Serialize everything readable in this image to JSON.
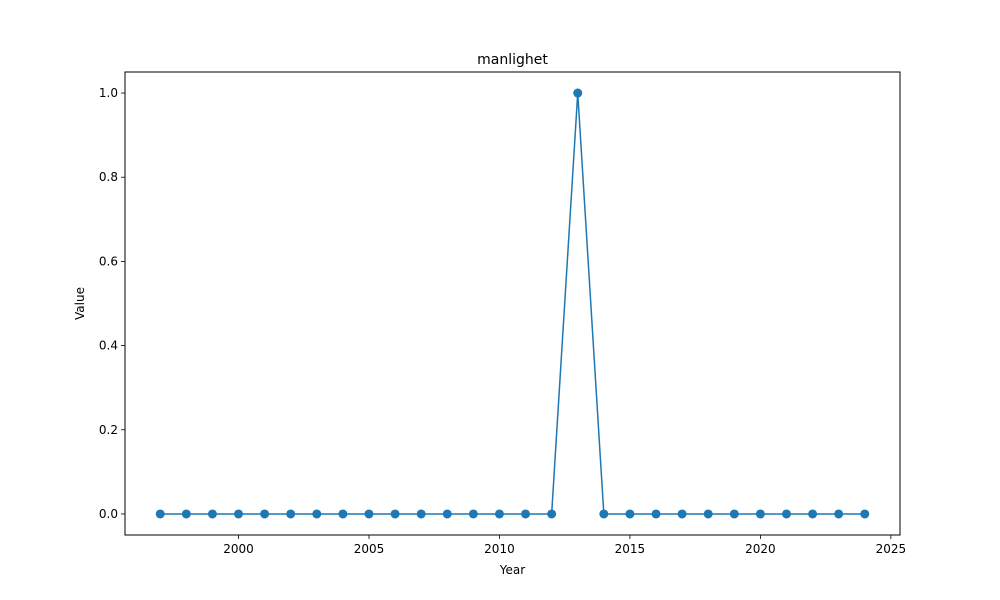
{
  "chart_data": {
    "type": "line",
    "title": "manlighet",
    "xlabel": "Year",
    "ylabel": "Value",
    "xlim": [
      1995.65,
      2025.35
    ],
    "ylim": [
      -0.05,
      1.05
    ],
    "xticks": [
      2000,
      2005,
      2010,
      2015,
      2020,
      2025
    ],
    "yticks": [
      0.0,
      0.2,
      0.4,
      0.6,
      0.8,
      1.0
    ],
    "xtick_labels": [
      "2000",
      "2005",
      "2010",
      "2015",
      "2020",
      "2025"
    ],
    "ytick_labels": [
      "0.0",
      "0.2",
      "0.4",
      "0.6",
      "0.8",
      "1.0"
    ],
    "grid": false,
    "series": [
      {
        "color": "#1f77b4",
        "marker": "circle",
        "x": [
          1997,
          1998,
          1999,
          2000,
          2001,
          2002,
          2003,
          2004,
          2005,
          2006,
          2007,
          2008,
          2009,
          2010,
          2011,
          2012,
          2013,
          2014,
          2015,
          2016,
          2017,
          2018,
          2019,
          2020,
          2021,
          2022,
          2023,
          2024
        ],
        "y": [
          0,
          0,
          0,
          0,
          0,
          0,
          0,
          0,
          0,
          0,
          0,
          0,
          0,
          0,
          0,
          0,
          1,
          0,
          0,
          0,
          0,
          0,
          0,
          0,
          0,
          0,
          0,
          0
        ]
      }
    ]
  }
}
